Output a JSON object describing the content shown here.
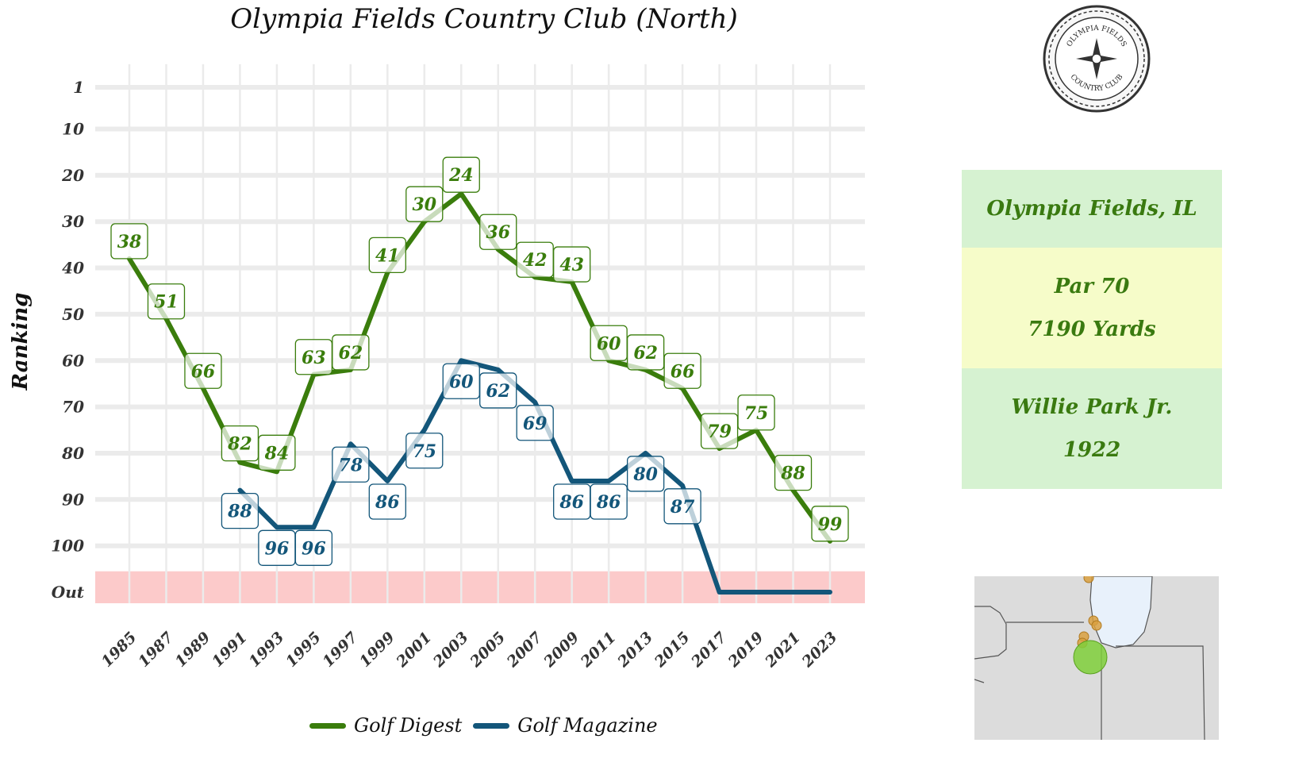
{
  "chart_data": {
    "type": "line",
    "title": "Olympia Fields Country Club (North)",
    "ylabel": "Ranking",
    "xlabel": "",
    "x_ticks": [
      "1985",
      "1987",
      "1989",
      "1991",
      "1993",
      "1995",
      "1997",
      "1999",
      "2001",
      "2003",
      "2005",
      "2007",
      "2009",
      "2011",
      "2013",
      "2015",
      "2017",
      "2019",
      "2021",
      "2023"
    ],
    "y_ticks": [
      "1",
      "10",
      "20",
      "30",
      "40",
      "50",
      "60",
      "70",
      "80",
      "90",
      "100",
      "Out"
    ],
    "y_tick_values": [
      1,
      10,
      20,
      30,
      40,
      50,
      60,
      70,
      80,
      90,
      100,
      110
    ],
    "y_reversed": true,
    "grid": true,
    "out_band_color": "#fccaca",
    "legend_position": "bottom",
    "series": [
      {
        "name": "Golf Digest",
        "color": "#3a7d0c",
        "points": [
          {
            "x": 1985,
            "y": 38,
            "label": "38"
          },
          {
            "x": 1987,
            "y": 51,
            "label": "51"
          },
          {
            "x": 1989,
            "y": 66,
            "label": "66"
          },
          {
            "x": 1991,
            "y": 82,
            "label": "82"
          },
          {
            "x": 1993,
            "y": 84,
            "label": "84"
          },
          {
            "x": 1995,
            "y": 63,
            "label": "63"
          },
          {
            "x": 1997,
            "y": 62,
            "label": "62"
          },
          {
            "x": 1999,
            "y": 41,
            "label": "41"
          },
          {
            "x": 2001,
            "y": 30,
            "label": "30"
          },
          {
            "x": 2003,
            "y": 24,
            "label": "24"
          },
          {
            "x": 2005,
            "y": 36,
            "label": "36"
          },
          {
            "x": 2007,
            "y": 42,
            "label": "42"
          },
          {
            "x": 2009,
            "y": 43,
            "label": "43"
          },
          {
            "x": 2011,
            "y": 60,
            "label": "60"
          },
          {
            "x": 2013,
            "y": 62,
            "label": "62"
          },
          {
            "x": 2015,
            "y": 66,
            "label": "66"
          },
          {
            "x": 2017,
            "y": 79,
            "label": "79"
          },
          {
            "x": 2019,
            "y": 75,
            "label": "75"
          },
          {
            "x": 2021,
            "y": 88,
            "label": "88"
          },
          {
            "x": 2023,
            "y": 99,
            "label": "99"
          }
        ]
      },
      {
        "name": "Golf Magazine",
        "color": "#13567a",
        "points": [
          {
            "x": 1991,
            "y": 88,
            "label": "88"
          },
          {
            "x": 1993,
            "y": 96,
            "label": "96"
          },
          {
            "x": 1995,
            "y": 96,
            "label": "96"
          },
          {
            "x": 1997,
            "y": 78,
            "label": "78"
          },
          {
            "x": 1999,
            "y": 86,
            "label": "86"
          },
          {
            "x": 2001,
            "y": 75,
            "label": "75"
          },
          {
            "x": 2003,
            "y": 60,
            "label": "60"
          },
          {
            "x": 2005,
            "y": 62,
            "label": "62"
          },
          {
            "x": 2007,
            "y": 69,
            "label": "69"
          },
          {
            "x": 2009,
            "y": 86,
            "label": "86"
          },
          {
            "x": 2011,
            "y": 86,
            "label": "86"
          },
          {
            "x": 2013,
            "y": 80,
            "label": "80"
          },
          {
            "x": 2015,
            "y": 87,
            "label": "87"
          },
          {
            "x": 2017,
            "y": "Out"
          },
          {
            "x": 2019,
            "y": "Out"
          },
          {
            "x": 2021,
            "y": "Out"
          },
          {
            "x": 2023,
            "y": "Out"
          }
        ]
      }
    ]
  },
  "info": {
    "location": "Olympia Fields, IL",
    "par": "Par 70",
    "yards": "7190 Yards",
    "architect": "Willie Park Jr.",
    "year": "1922"
  },
  "seal": {
    "text_top": "OLYMPIA FIELDS",
    "text_bottom": "COUNTRY CLUB"
  },
  "map": {
    "highlight_color": "#7fcf3a",
    "marker_color": "#d9a040",
    "water_color": "#e8f1fb",
    "land_color": "#dcdcdc"
  },
  "legend": {
    "items": [
      {
        "name": "Golf Digest",
        "color": "#3a7d0c"
      },
      {
        "name": "Golf Magazine",
        "color": "#13567a"
      }
    ]
  }
}
